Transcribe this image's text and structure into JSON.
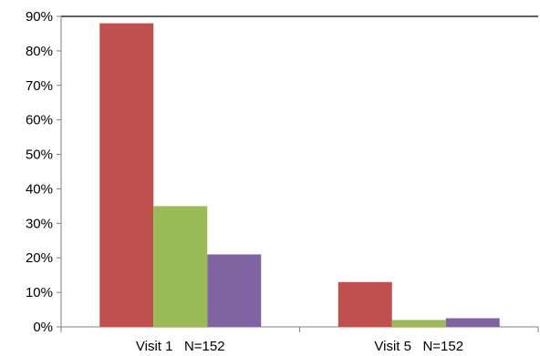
{
  "chart_data": {
    "type": "bar",
    "title": "",
    "xlabel": "",
    "ylabel": "",
    "categories": [
      "Visit 1   N=152",
      "Visit 5   N=152"
    ],
    "series": [
      {
        "values": [
          88,
          13
        ],
        "color": "#c0504d"
      },
      {
        "values": [
          35,
          2
        ],
        "color": "#9bbb59"
      },
      {
        "values": [
          21,
          2.5
        ],
        "color": "#8064a2"
      }
    ],
    "ylim": [
      0,
      90
    ],
    "yticks": [
      0,
      10,
      20,
      30,
      40,
      50,
      60,
      70,
      80,
      90
    ],
    "ytick_suffix": "%",
    "grid": false,
    "legend": "none"
  }
}
